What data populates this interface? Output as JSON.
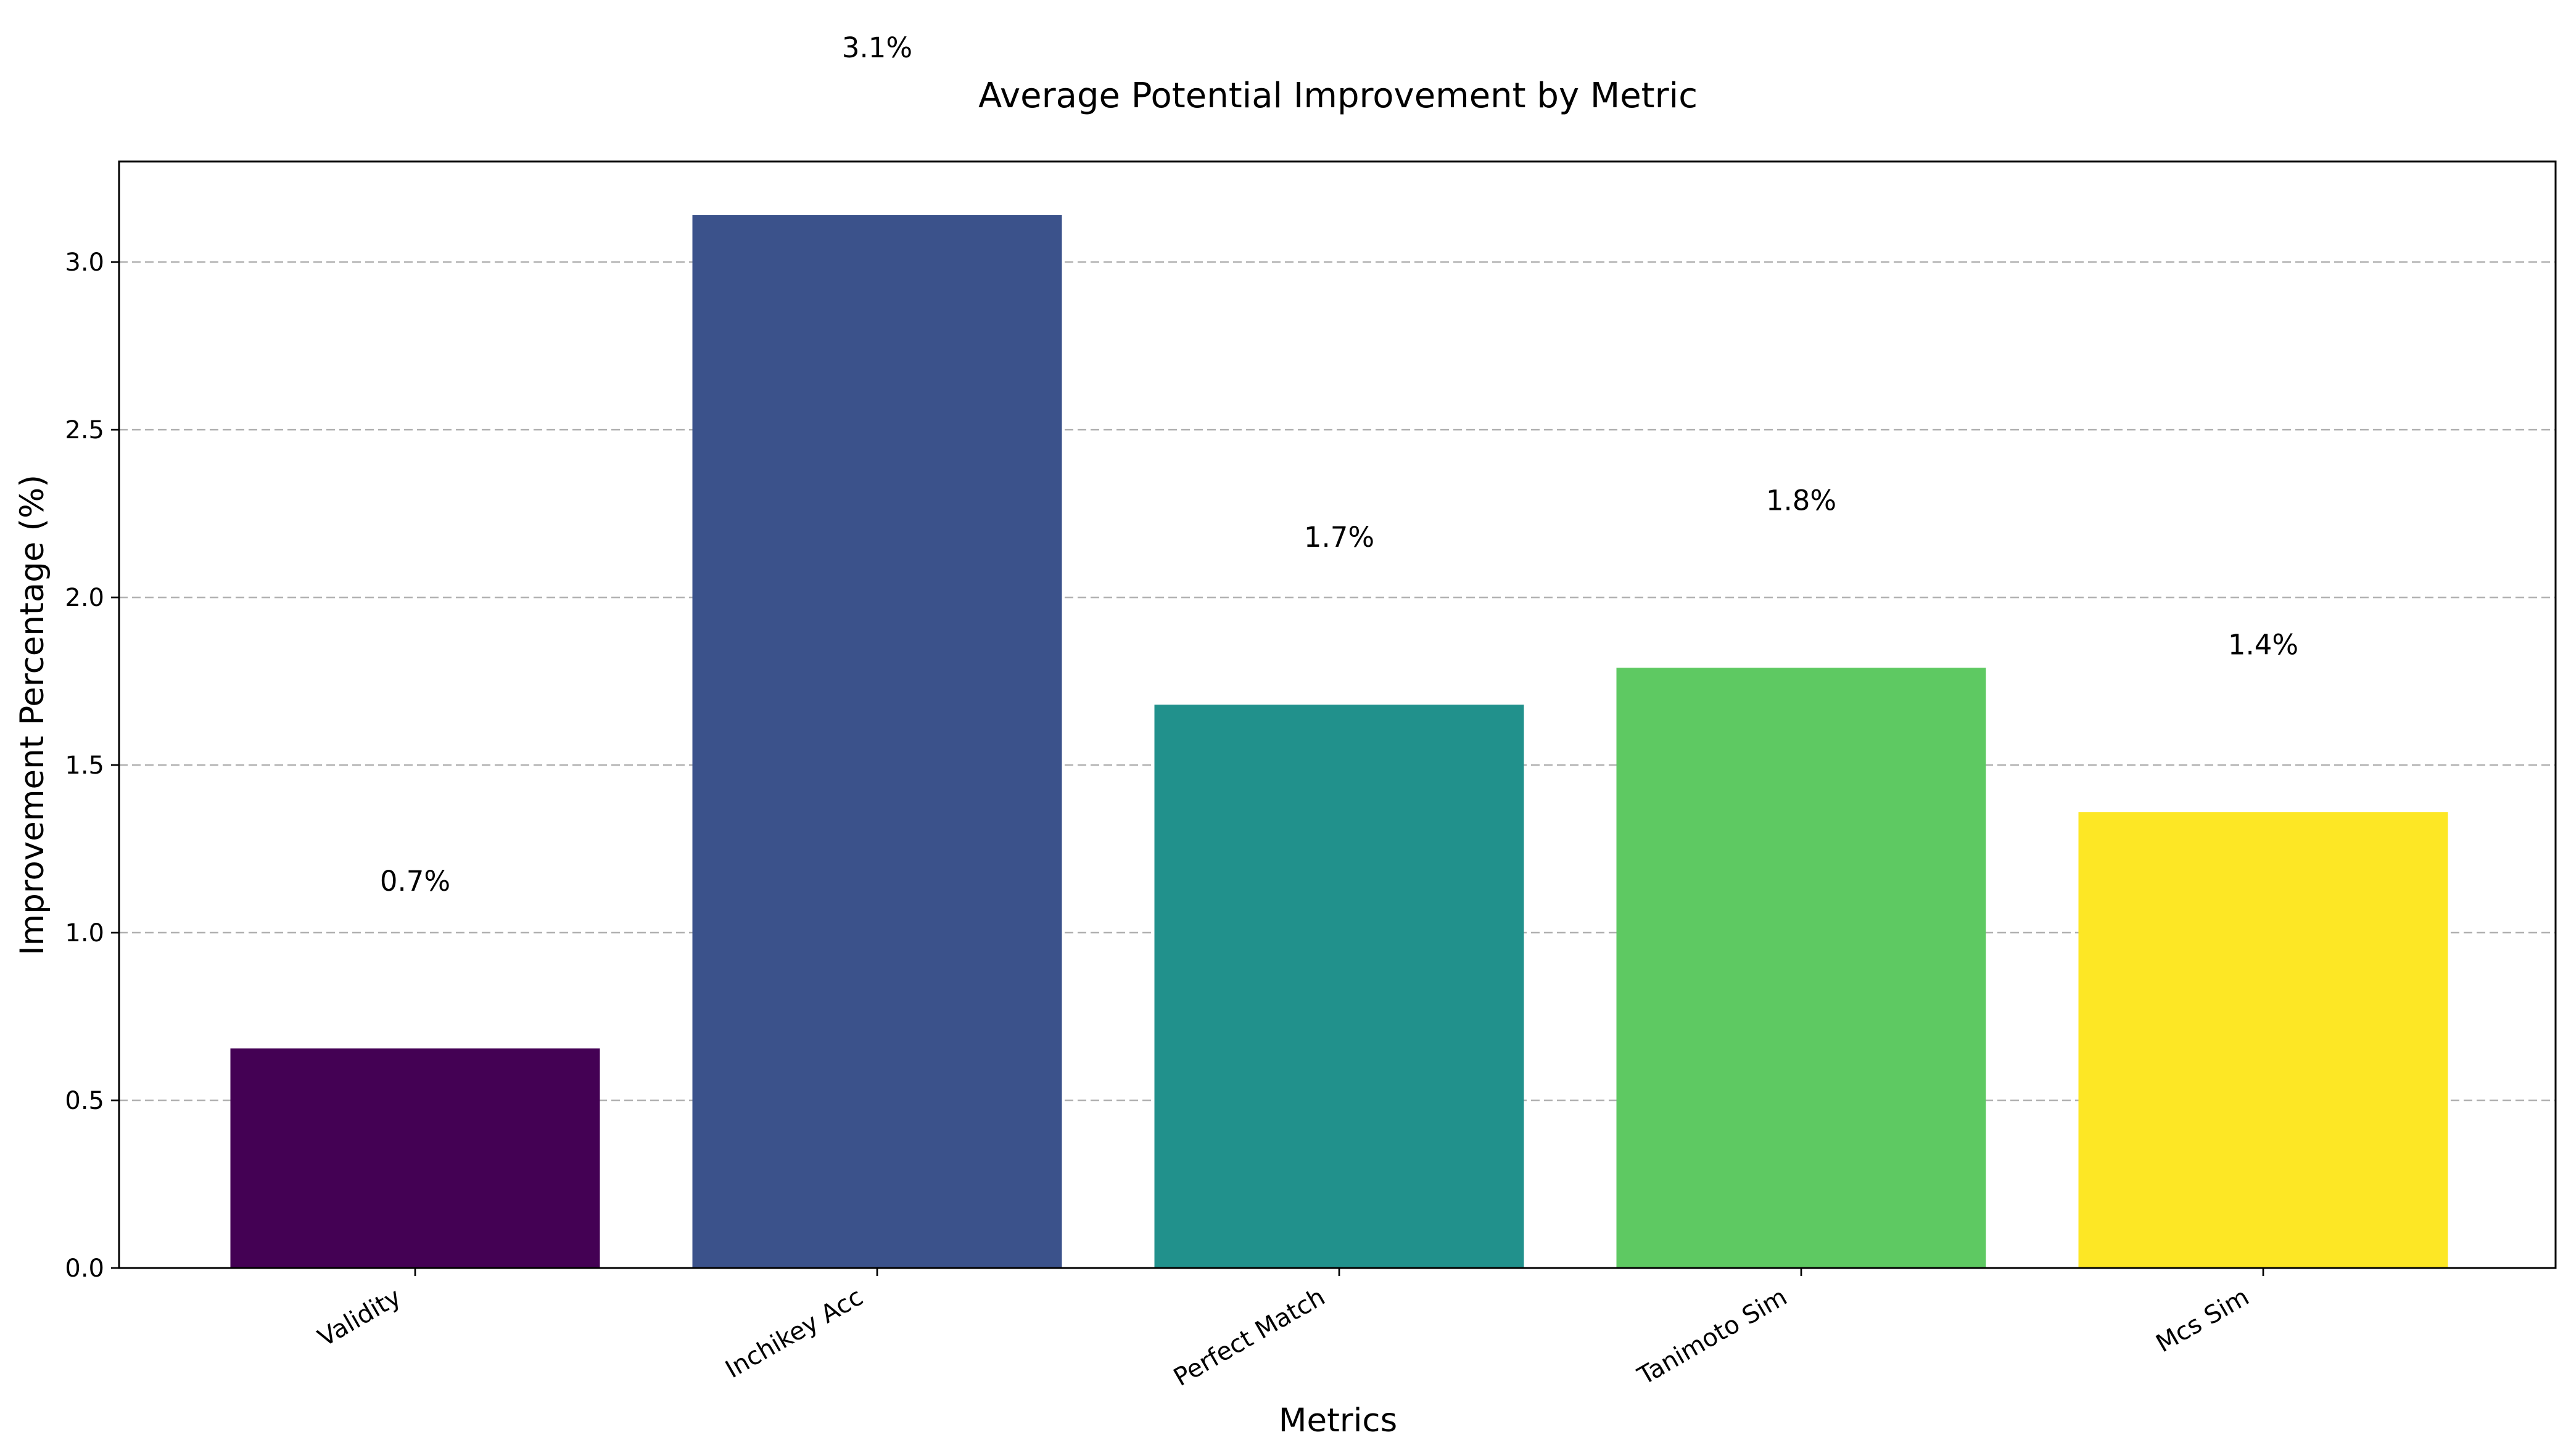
{
  "chart_data": {
    "type": "bar",
    "title": "Average Potential Improvement by Metric",
    "xlabel": "Metrics",
    "ylabel": "Improvement Percentage (%)",
    "categories": [
      "Validity",
      "Inchikey Acc",
      "Perfect Match",
      "Tanimoto Sim",
      "Mcs Sim"
    ],
    "values": [
      0.655,
      3.14,
      1.68,
      1.79,
      1.36
    ],
    "data_labels": [
      "0.7%",
      "3.1%",
      "1.7%",
      "1.8%",
      "1.4%"
    ],
    "colors": [
      "#440154",
      "#3b528b",
      "#21918c",
      "#5ec962",
      "#fde725"
    ],
    "yticks": [
      "0.0",
      "0.5",
      "1.0",
      "1.5",
      "2.0",
      "2.5",
      "3.0"
    ],
    "ylim": [
      0,
      3.3
    ],
    "grid": "y-dashed",
    "legend": "none"
  }
}
